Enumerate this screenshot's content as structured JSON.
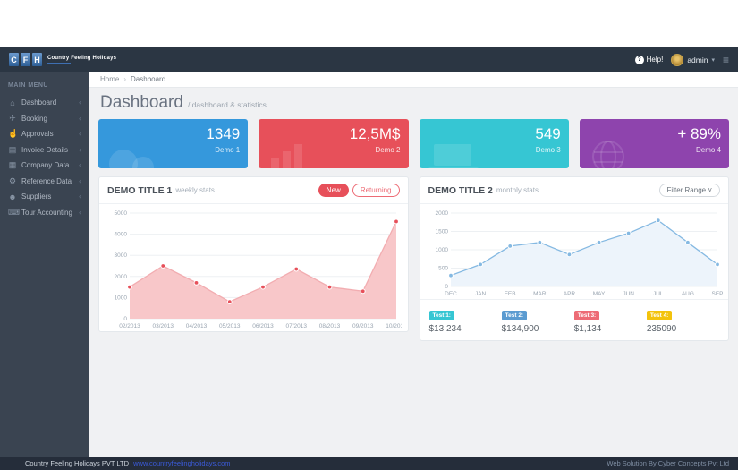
{
  "brand": {
    "letters": [
      "C",
      "F",
      "H"
    ],
    "name": "Country Feeling Holidays"
  },
  "topbar": {
    "help_icon": "?",
    "help_label": "Help!",
    "user_name": "admin",
    "caret": "▾",
    "menu_icon": "≡"
  },
  "sidebar": {
    "header": "MAIN MENU",
    "chevron": "‹",
    "items": [
      {
        "icon": "home-icon",
        "glyph": "⌂",
        "label": "Dashboard"
      },
      {
        "icon": "plane-icon",
        "glyph": "✈",
        "label": "Booking"
      },
      {
        "icon": "thumbs-up-icon",
        "glyph": "☝",
        "label": "Approvals"
      },
      {
        "icon": "document-icon",
        "glyph": "▤",
        "label": "Invoice Details"
      },
      {
        "icon": "book-icon",
        "glyph": "▦",
        "label": "Company Data"
      },
      {
        "icon": "gears-icon",
        "glyph": "⚙",
        "label": "Reference Data"
      },
      {
        "icon": "users-icon",
        "glyph": "☻",
        "label": "Suppliers"
      },
      {
        "icon": "calculator-icon",
        "glyph": "⌨",
        "label": "Tour Accounting"
      }
    ]
  },
  "breadcrumb": {
    "home": "Home",
    "separator": "›",
    "current": "Dashboard"
  },
  "page_header": {
    "title": "Dashboard",
    "subtitle": "/ dashboard & statistics"
  },
  "stat_cards": [
    {
      "value": "1349",
      "label": "Demo 1",
      "color": "#3598dc",
      "icon": "cloud-icon"
    },
    {
      "value": "12,5M$",
      "label": "Demo 2",
      "color": "#e7505a",
      "icon": "bar-chart-icon"
    },
    {
      "value": "549",
      "label": "Demo 3",
      "color": "#36c6d3",
      "icon": "laptop-icon"
    },
    {
      "value": "+ 89%",
      "label": "Demo 4",
      "color": "#8e44ad",
      "icon": "globe-icon"
    }
  ],
  "panels": [
    {
      "title": "DEMO TITLE 1",
      "subtitle": "weekly stats...",
      "buttons": [
        {
          "label": "New"
        },
        {
          "label": "Returning"
        }
      ]
    },
    {
      "title": "DEMO TITLE 2",
      "subtitle": "monthly stats...",
      "filter_button": "Filter Range ˅"
    }
  ],
  "chart_data": [
    {
      "type": "area",
      "title": "DEMO TITLE 1 weekly stats",
      "x": [
        "02/2013",
        "03/2013",
        "04/2013",
        "05/2013",
        "06/2013",
        "07/2013",
        "08/2013",
        "09/2013",
        "10/2013"
      ],
      "values": [
        1500,
        2500,
        1700,
        800,
        1500,
        2350,
        1500,
        1300,
        4600
      ],
      "ylim": [
        0,
        5000
      ],
      "yticks": [
        0,
        1000,
        2000,
        3000,
        4000,
        5000
      ],
      "grid": true,
      "legend": "none",
      "fill_color": "#f8c7c9",
      "line_color": "#f2adb1",
      "marker_color": "#e7505a",
      "marker_stroke": "#ffffff"
    },
    {
      "type": "line",
      "title": "DEMO TITLE 2 monthly stats",
      "x": [
        "DEC",
        "JAN",
        "FEB",
        "MAR",
        "APR",
        "MAY",
        "JUN",
        "JUL",
        "AUG",
        "SEP"
      ],
      "values": [
        300,
        600,
        1100,
        1200,
        870,
        1200,
        1450,
        1800,
        1200,
        600
      ],
      "ylim": [
        0,
        2000
      ],
      "yticks": [
        0,
        500,
        1000,
        1500,
        2000
      ],
      "grid": true,
      "legend": "none",
      "fill_color": "#edf4fb",
      "line_color": "#85b9e2",
      "marker_color": "#85b9e2",
      "marker_stroke": "#ffffff"
    }
  ],
  "chart2_stats": [
    {
      "label": "Test 1:",
      "value": "$13,234",
      "color": "#36c6d3"
    },
    {
      "label": "Test 2:",
      "value": "$134,900",
      "color": "#5b9bd1"
    },
    {
      "label": "Test 3:",
      "value": "$1,134",
      "color": "#ed6b75"
    },
    {
      "label": "Test 4:",
      "value": "235090",
      "color": "#f3c30d"
    }
  ],
  "footer": {
    "company": "Country Feeling Holidays PVT LTD",
    "link": "www.countryfeelingholidays.com",
    "credit": "Web Solution By Cyber Concepts Pvt Ltd"
  }
}
